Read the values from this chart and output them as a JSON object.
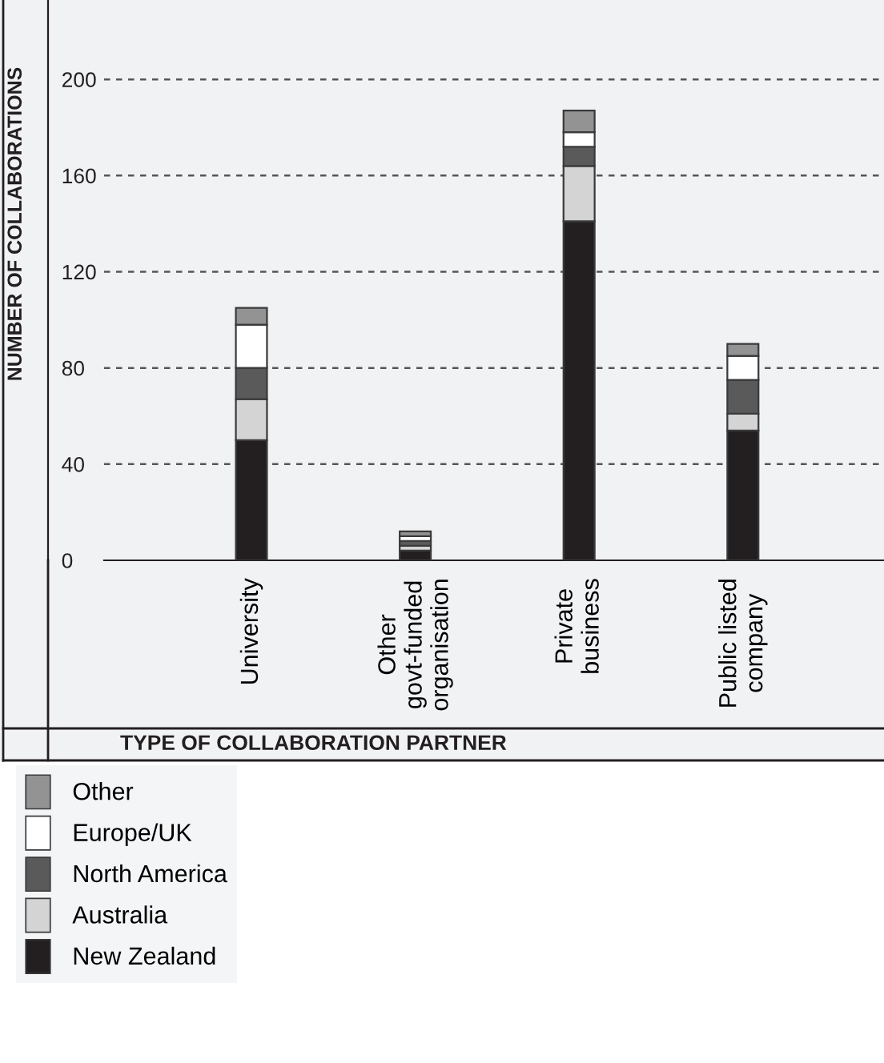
{
  "chart_data": {
    "type": "bar",
    "stacked": true,
    "ylabel": "NUMBER OF COLLABORATIONS",
    "xlabel": "TYPE OF COLLABORATION PARTNER",
    "categories": [
      "University",
      "Other\ngovt-funded\norganisation",
      "Private\nbusiness",
      "Public listed\ncompany"
    ],
    "series": [
      {
        "name": "New Zealand",
        "color": "#231f20",
        "values": [
          50,
          4,
          141,
          54
        ]
      },
      {
        "name": "Australia",
        "color": "#d4d4d4",
        "values": [
          17,
          2,
          23,
          7
        ]
      },
      {
        "name": "North America",
        "color": "#5a5a5a",
        "values": [
          13,
          2,
          8,
          14
        ]
      },
      {
        "name": "Europe/UK",
        "color": "#ffffff",
        "values": [
          18,
          2,
          6,
          10
        ]
      },
      {
        "name": "Other",
        "color": "#939393",
        "values": [
          7,
          2,
          9,
          5
        ]
      }
    ],
    "ylim": [
      0,
      233
    ],
    "yticks": [
      0,
      40,
      80,
      120,
      160,
      200
    ],
    "grid": "y",
    "legend": "bottom left"
  }
}
